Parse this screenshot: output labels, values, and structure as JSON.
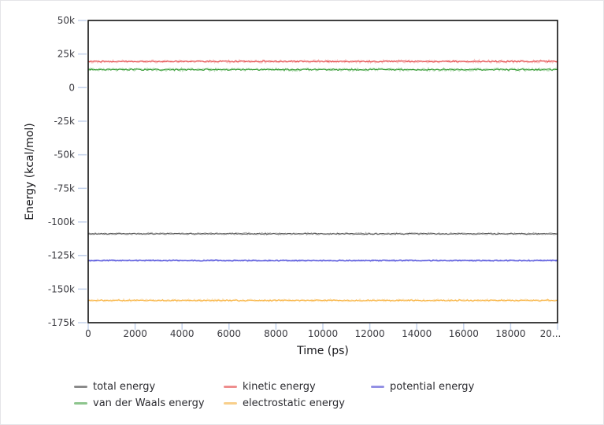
{
  "page": {
    "background": "#ffffff",
    "frame_color": "#111111",
    "tick_color": "#c5d3ec",
    "tick_label_color": "#3b3b41"
  },
  "chart_data": {
    "type": "line",
    "title": "",
    "xlabel": "Time (ps)",
    "ylabel": "Energy (kcal/mol)",
    "xlim": [
      0,
      20000
    ],
    "ylim": [
      -175000,
      50000
    ],
    "grid": false,
    "legend_position": "bottom",
    "x_ticks": [
      {
        "value": 0,
        "label": "0"
      },
      {
        "value": 2000,
        "label": "2000"
      },
      {
        "value": 4000,
        "label": "4000"
      },
      {
        "value": 6000,
        "label": "6000"
      },
      {
        "value": 8000,
        "label": "8000"
      },
      {
        "value": 10000,
        "label": "10000"
      },
      {
        "value": 12000,
        "label": "12000"
      },
      {
        "value": 14000,
        "label": "14000"
      },
      {
        "value": 16000,
        "label": "16000"
      },
      {
        "value": 18000,
        "label": "18000"
      },
      {
        "value": 20000,
        "label": "20..."
      }
    ],
    "y_ticks": [
      {
        "value": 50000,
        "label": "50k"
      },
      {
        "value": 25000,
        "label": "25k"
      },
      {
        "value": 0,
        "label": "0"
      },
      {
        "value": -25000,
        "label": "-25k"
      },
      {
        "value": -50000,
        "label": "-50k"
      },
      {
        "value": -75000,
        "label": "-75k"
      },
      {
        "value": -100000,
        "label": "-100k"
      },
      {
        "value": -125000,
        "label": "-125k"
      },
      {
        "value": -150000,
        "label": "-150k"
      },
      {
        "value": -175000,
        "label": "-175k"
      }
    ],
    "series": [
      {
        "name": "total energy",
        "value": -108800,
        "noise": 420,
        "color": "#454545",
        "speckle_color": "#9a9a9a",
        "legend_color": "#8a8a8a"
      },
      {
        "name": "kinetic energy",
        "value": 19500,
        "noise": 560,
        "color": "#e23b3b",
        "speckle_color": "#f4a2a2",
        "legend_color": "#ee8d8d"
      },
      {
        "name": "potential energy",
        "value": -128700,
        "noise": 380,
        "color": "#2b2bd4",
        "speckle_color": "#9393e8",
        "legend_color": "#9390e4"
      },
      {
        "name": "van der Waals energy",
        "value": 13400,
        "noise": 560,
        "color": "#1e8f1e",
        "speckle_color": "#8bca8b",
        "legend_color": "#8dc58d"
      },
      {
        "name": "electrostatic energy",
        "value": -158400,
        "noise": 470,
        "color": "#f7a61f",
        "speckle_color": "#fbd392",
        "legend_color": "#f8cf8b"
      }
    ]
  }
}
